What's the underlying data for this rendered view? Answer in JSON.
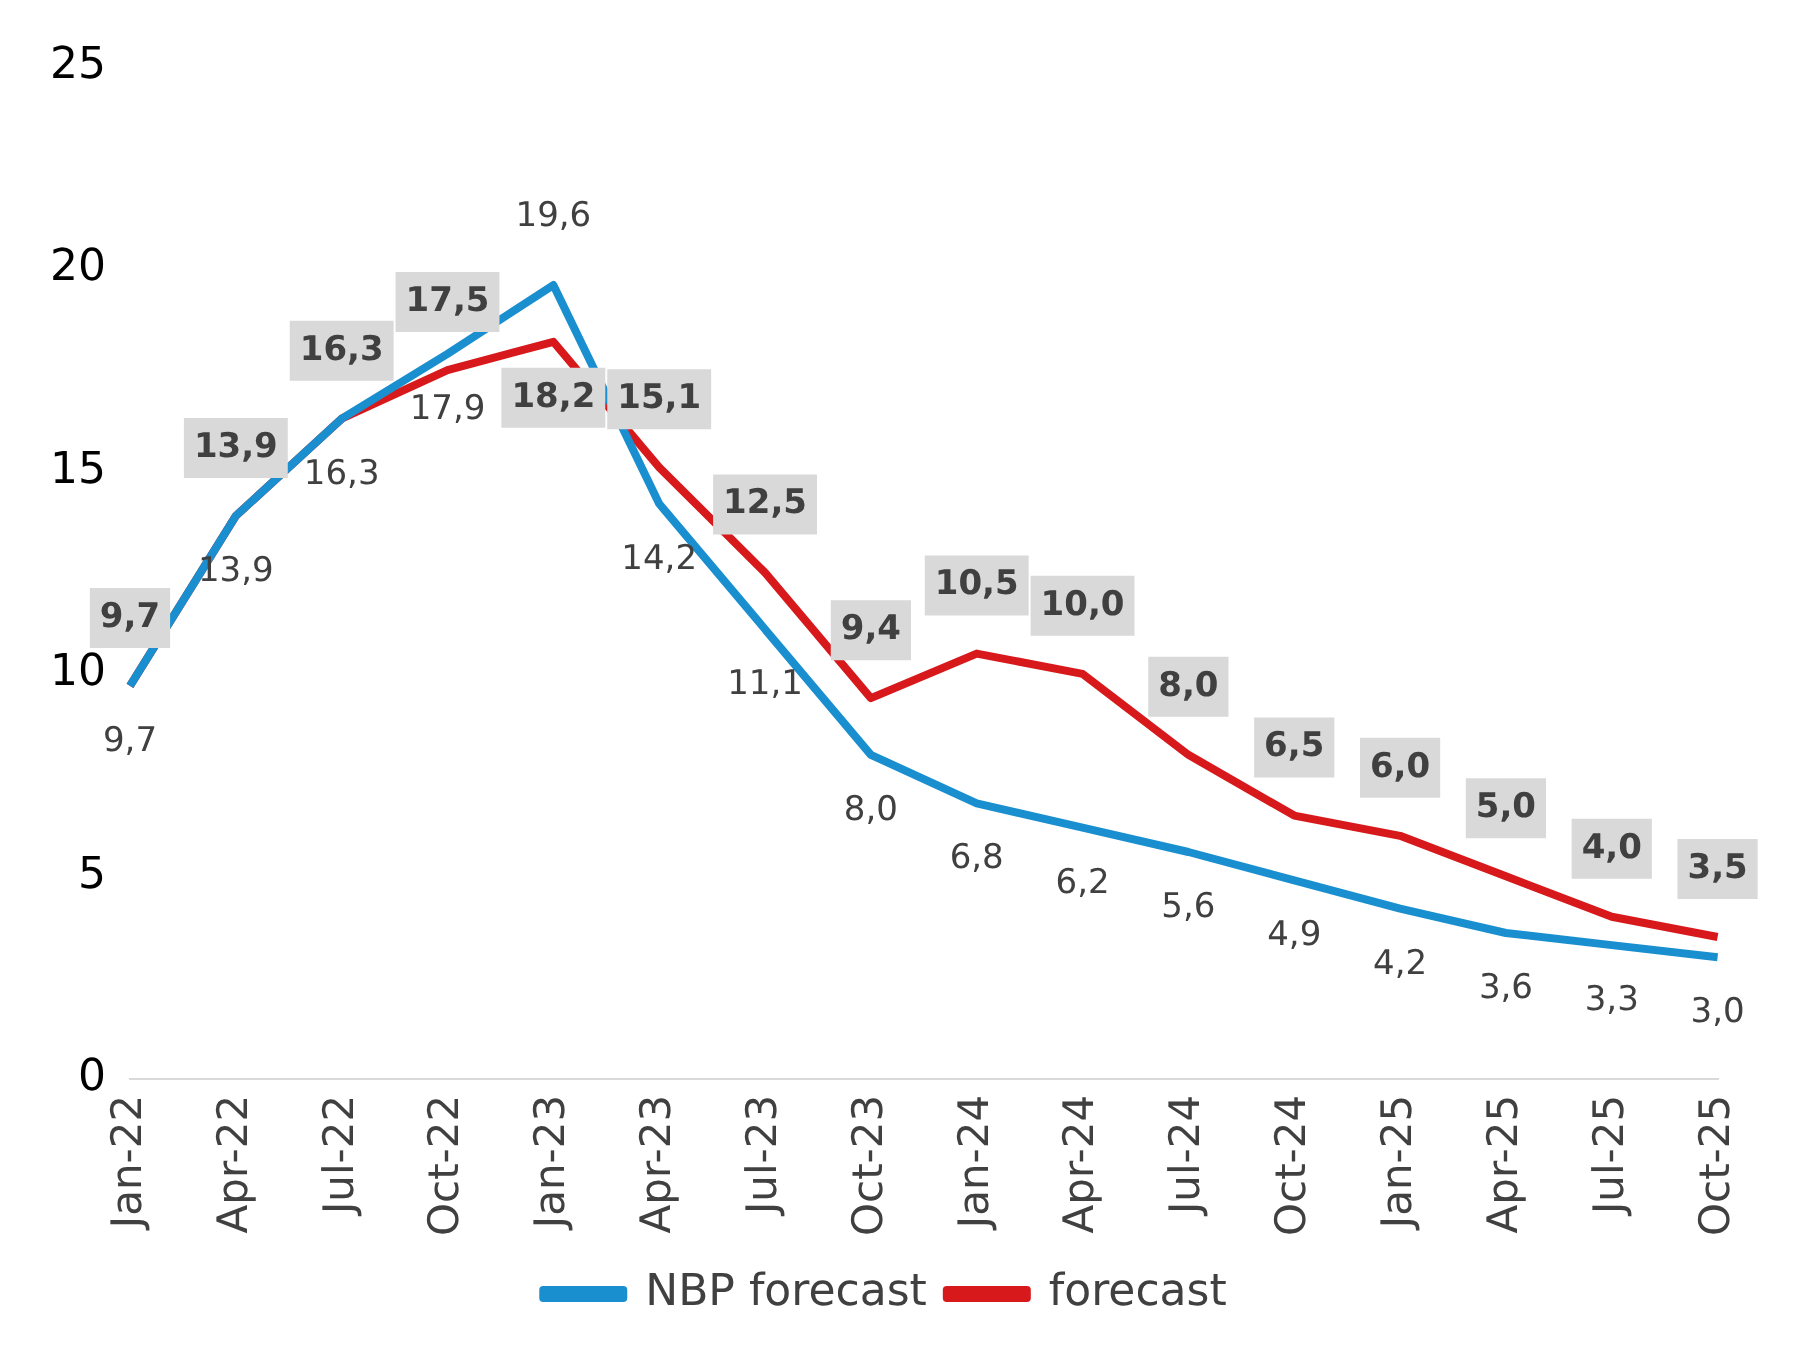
{
  "chart_data": {
    "type": "line",
    "categories": [
      "Jan-22",
      "Apr-22",
      "Jul-22",
      "Oct-22",
      "Jan-23",
      "Apr-23",
      "Jul-23",
      "Oct-23",
      "Jan-24",
      "Apr-24",
      "Jul-24",
      "Oct-24",
      "Jan-25",
      "Apr-25",
      "Jul-25",
      "Oct-25"
    ],
    "series": [
      {
        "name": "NBP forecast",
        "color": "#1a8fd0",
        "values": [
          9.7,
          13.9,
          16.3,
          17.9,
          19.6,
          14.2,
          11.1,
          8.0,
          6.8,
          6.2,
          5.6,
          4.9,
          4.2,
          3.6,
          3.3,
          3.0
        ],
        "value_labels": [
          "9,7",
          "13,9",
          "16,3",
          "17,9",
          "19,6",
          "14,2",
          "11,1",
          "8,0",
          "6,8",
          "6,2",
          "5,6",
          "4,9",
          "4,2",
          "3,6",
          "3,3",
          "3,0"
        ]
      },
      {
        "name": "forecast",
        "color": "#d7191c",
        "values": [
          9.7,
          13.9,
          16.3,
          17.5,
          18.2,
          15.1,
          12.5,
          9.4,
          10.5,
          10.0,
          8.0,
          6.5,
          6.0,
          5.0,
          4.0,
          3.5
        ],
        "value_labels": [
          "9,7",
          "13,9",
          "16,3",
          "17,5",
          "18,2",
          "15,1",
          "12,5",
          "9,4",
          "10,5",
          "10,0",
          "8,0",
          "6,5",
          "6,0",
          "5,0",
          "4,0",
          "3,5"
        ]
      }
    ],
    "ylim": [
      0,
      25
    ],
    "yticks": [
      0,
      5,
      10,
      15,
      20,
      25
    ],
    "grid": false,
    "legend": "bottom",
    "marker": "none",
    "line_style": "solid"
  }
}
